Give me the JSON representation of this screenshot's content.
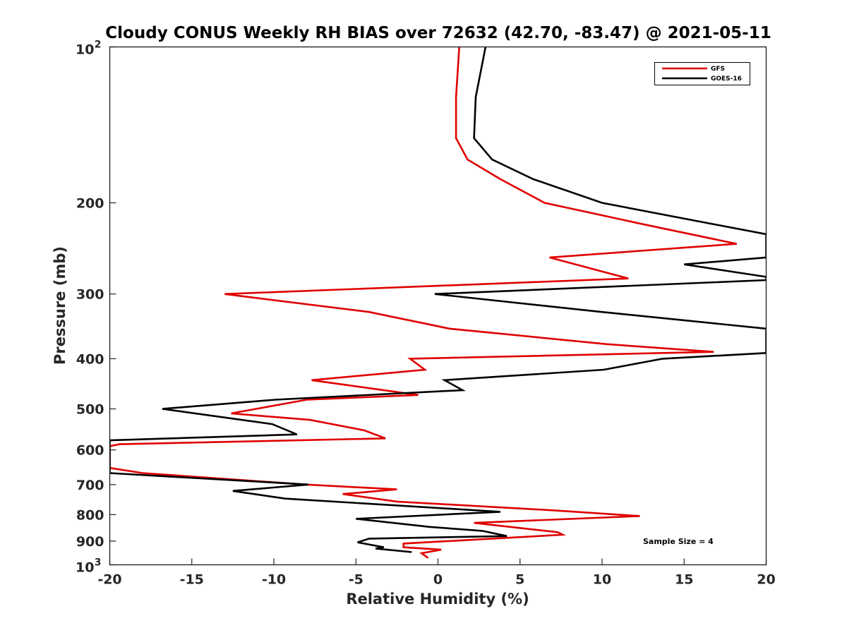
{
  "chart_data": {
    "type": "line",
    "title": "Cloudy CONUS Weekly RH BIAS over 72632 (42.70, -83.47) @ 2021-05-11",
    "xlabel": "Relative Humidity (%)",
    "ylabel": "Pressure (mb)",
    "xlim": [
      -20,
      20
    ],
    "ylim": [
      100,
      1000
    ],
    "y_scale": "log",
    "y_reversed": true,
    "x_ticks": [
      "-20",
      "-15",
      "-10",
      "-5",
      "0",
      "5",
      "10",
      "15",
      "20"
    ],
    "x_tick_values": [
      -20,
      -15,
      -10,
      -5,
      0,
      5,
      10,
      15,
      20
    ],
    "y_tick_values": [
      100,
      200,
      300,
      400,
      500,
      600,
      700,
      800,
      900,
      1000
    ],
    "y_ticks": [
      "10",
      "200",
      "300",
      "400",
      "500",
      "600",
      "700",
      "800",
      "900",
      "10"
    ],
    "y_tick_exponents": [
      "2",
      "",
      "",
      "",
      "",
      "",
      "",
      "",
      "",
      "3"
    ],
    "legend_position": "top-right",
    "grid": false,
    "annotation": "Sample Size = 4",
    "series": [
      {
        "name": "GFS",
        "color": "#e00000",
        "points": [
          [
            1.3,
            100
          ],
          [
            1.1,
            125
          ],
          [
            1.1,
            150
          ],
          [
            1.8,
            165
          ],
          [
            3.8,
            180
          ],
          [
            6.5,
            200
          ],
          [
            12.5,
            220
          ],
          [
            18.2,
            240
          ],
          [
            6.8,
            255
          ],
          [
            11.6,
            280
          ],
          [
            -13.0,
            300
          ],
          [
            -4.2,
            325
          ],
          [
            0.7,
            350
          ],
          [
            10.3,
            375
          ],
          [
            16.8,
            388
          ],
          [
            -1.7,
            400
          ],
          [
            -0.8,
            420
          ],
          [
            -7.7,
            440
          ],
          [
            -1.2,
            470
          ],
          [
            -8.0,
            480
          ],
          [
            -12.6,
            510
          ],
          [
            -7.8,
            525
          ],
          [
            -4.5,
            550
          ],
          [
            -3.2,
            570
          ],
          [
            -19.4,
            585
          ],
          [
            -20.0,
            590
          ],
          [
            -20.0,
            650
          ],
          [
            -18.0,
            665
          ],
          [
            -8.0,
            700
          ],
          [
            -2.5,
            715
          ],
          [
            -5.8,
            730
          ],
          [
            -2.5,
            755
          ],
          [
            7.0,
            785
          ],
          [
            12.3,
            805
          ],
          [
            2.2,
            830
          ],
          [
            7.3,
            865
          ],
          [
            7.6,
            875
          ],
          [
            -2.1,
            910
          ],
          [
            -2.1,
            925
          ],
          [
            0.2,
            935
          ],
          [
            -1.0,
            950
          ],
          [
            -0.6,
            970
          ]
        ]
      },
      {
        "name": "GOES-16",
        "color": "#000000",
        "points": [
          [
            2.9,
            100
          ],
          [
            2.3,
            125
          ],
          [
            2.2,
            150
          ],
          [
            3.3,
            165
          ],
          [
            5.8,
            180
          ],
          [
            10.0,
            200
          ],
          [
            20.0,
            230
          ],
          [
            20.0,
            255
          ],
          [
            15.0,
            263
          ],
          [
            20.0,
            278
          ],
          [
            20.0,
            282
          ],
          [
            -0.2,
            300
          ],
          [
            10.0,
            325
          ],
          [
            20.0,
            350
          ],
          [
            20.0,
            390
          ],
          [
            13.7,
            400
          ],
          [
            10.1,
            420
          ],
          [
            0.4,
            440
          ],
          [
            1.5,
            460
          ],
          [
            -9.9,
            480
          ],
          [
            -16.8,
            500
          ],
          [
            -10.1,
            535
          ],
          [
            -8.6,
            560
          ],
          [
            -20.0,
            575
          ],
          [
            -20.0,
            665
          ],
          [
            -7.9,
            700
          ],
          [
            -12.5,
            720
          ],
          [
            -9.3,
            745
          ],
          [
            3.8,
            790
          ],
          [
            -5.0,
            815
          ],
          [
            -0.5,
            845
          ],
          [
            2.7,
            860
          ],
          [
            4.2,
            880
          ],
          [
            -4.2,
            890
          ],
          [
            -4.9,
            905
          ],
          [
            -3.3,
            925
          ],
          [
            -3.8,
            930
          ],
          [
            -1.6,
            945
          ]
        ]
      }
    ]
  }
}
